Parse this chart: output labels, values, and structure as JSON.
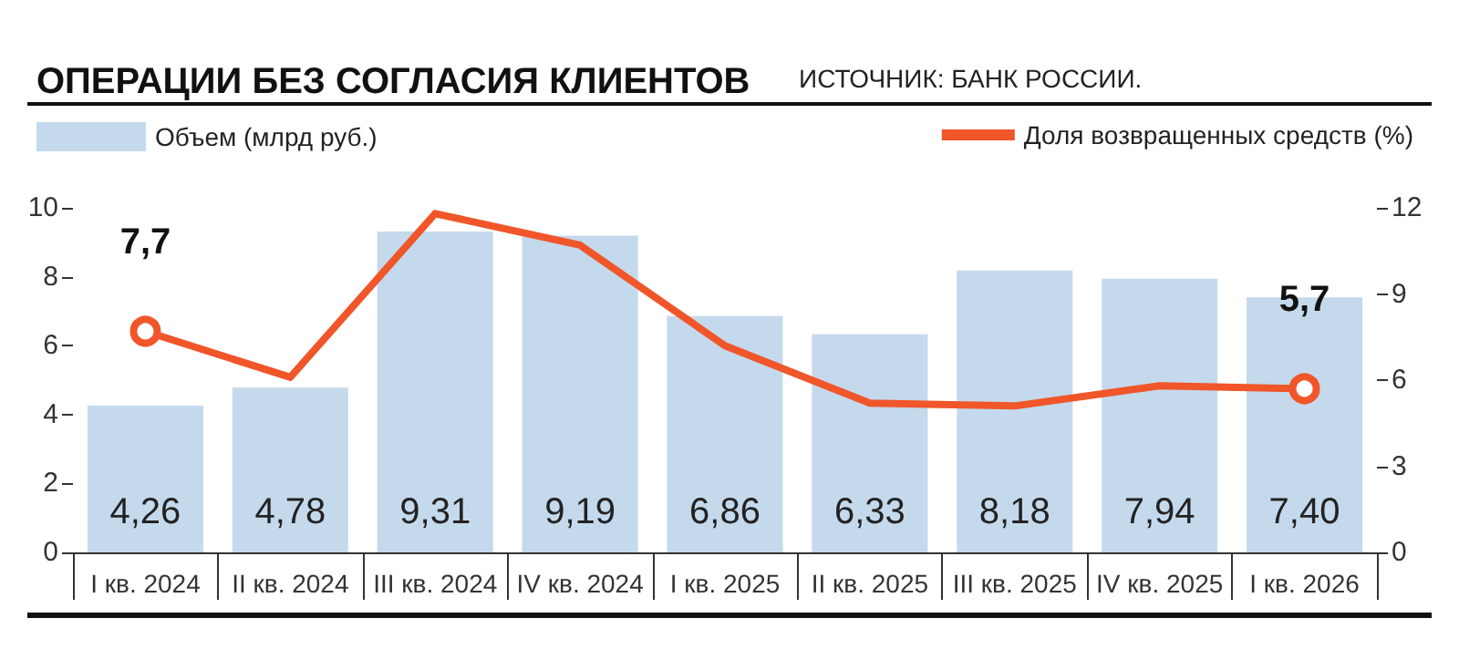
{
  "chart_data": {
    "type": "bar",
    "title": "ОПЕРАЦИИ БЕЗ СОГЛАСИЯ КЛИЕНТОВ",
    "annotations": [
      "ИСТОЧНИК: БАНК РОССИИ."
    ],
    "categories": [
      "I кв. 2024",
      "II кв. 2024",
      "III кв. 2024",
      "IV кв. 2024",
      "I кв. 2025",
      "II кв. 2025",
      "III кв. 2025",
      "IV кв. 2025",
      "I кв. 2026"
    ],
    "series": [
      {
        "name": "Объем (млрд руб.)",
        "color": "#c5d9ec",
        "values": [
          4.26,
          4.78,
          9.31,
          9.19,
          6.86,
          6.33,
          8.18,
          7.94,
          7.4
        ],
        "value_labels": [
          "4,26",
          "4,78",
          "9,31",
          "9,19",
          "6,86",
          "6,33",
          "8,18",
          "7,94",
          "7,40"
        ]
      },
      {
        "name": "Доля возвращенных средств (%)",
        "type": "line",
        "axis": "y2",
        "color": "#f0562a",
        "values": [
          7.7,
          6.1,
          11.8,
          10.7,
          7.2,
          5.2,
          5.1,
          5.8,
          5.7
        ],
        "value_labels": [
          "7,7",
          null,
          null,
          null,
          null,
          null,
          null,
          null,
          "5,7"
        ]
      }
    ],
    "ylim": [
      0,
      10
    ],
    "yticks": [
      0,
      2,
      4,
      6,
      8,
      10
    ],
    "y2lim": [
      0,
      12
    ],
    "y2ticks": [
      0,
      3,
      6,
      9,
      12
    ],
    "grid": false,
    "legend": "top"
  }
}
